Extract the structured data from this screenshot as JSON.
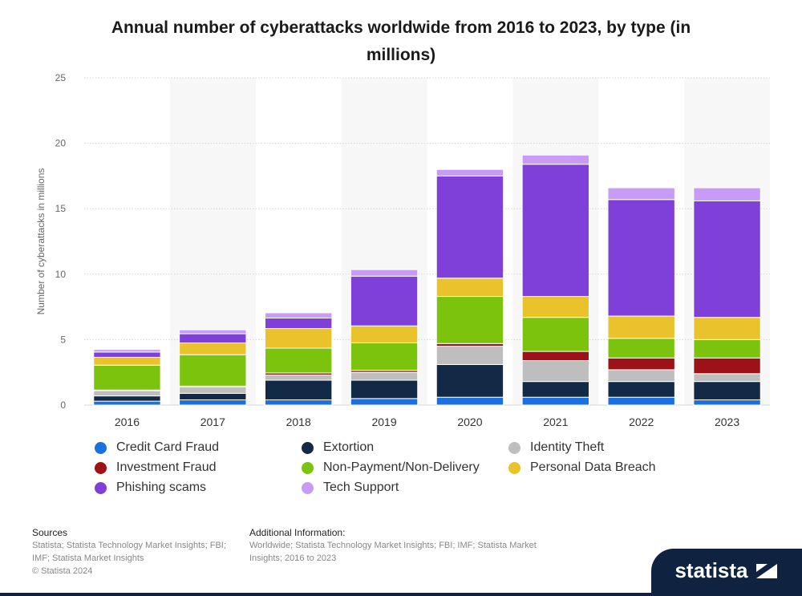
{
  "chart_data": {
    "type": "bar",
    "stacked": true,
    "title": "Annual number of cyberattacks worldwide from 2016 to 2023, by type (in millions)",
    "ylabel": "Number of cyberattacks in millions",
    "xlabel": "",
    "ylim": [
      0,
      25
    ],
    "yticks": [
      0,
      5,
      10,
      15,
      20,
      25
    ],
    "grid": true,
    "legend_position": "bottom",
    "categories": [
      "2016",
      "2017",
      "2018",
      "2019",
      "2020",
      "2021",
      "2022",
      "2023"
    ],
    "series": [
      {
        "name": "Credit Card Fraud",
        "color": "#1b6fde",
        "values": [
          0.3,
          0.4,
          0.4,
          0.5,
          0.6,
          0.6,
          0.6,
          0.4
        ]
      },
      {
        "name": "Extortion",
        "color": "#132a47",
        "values": [
          0.4,
          0.5,
          1.5,
          1.4,
          2.5,
          1.2,
          1.2,
          1.4
        ]
      },
      {
        "name": "Identity Theft",
        "color": "#bebebe",
        "values": [
          0.4,
          0.5,
          0.4,
          0.6,
          1.4,
          1.6,
          0.9,
          0.6
        ]
      },
      {
        "name": "Investment Fraud",
        "color": "#9c1216",
        "values": [
          0.05,
          0.05,
          0.15,
          0.15,
          0.2,
          0.7,
          0.9,
          1.2
        ]
      },
      {
        "name": "Non-Payment/Non-Delivery",
        "color": "#7cc30d",
        "values": [
          1.9,
          2.4,
          1.9,
          2.1,
          3.6,
          2.6,
          1.5,
          1.4
        ]
      },
      {
        "name": "Personal Data Breach",
        "color": "#eac22b",
        "values": [
          0.6,
          0.9,
          1.5,
          1.3,
          1.4,
          1.6,
          1.7,
          1.7
        ]
      },
      {
        "name": "Phishing scams",
        "color": "#7f3fd9",
        "values": [
          0.4,
          0.7,
          0.8,
          3.8,
          7.8,
          10.1,
          8.9,
          8.9
        ]
      },
      {
        "name": "Tech Support",
        "color": "#c79bf7",
        "values": [
          0.2,
          0.3,
          0.4,
          0.5,
          0.5,
          0.7,
          0.9,
          1.0
        ]
      }
    ]
  },
  "footer": {
    "sources_heading": "Sources",
    "sources_lines": [
      "Statista; Statista Technology Market Insights; FBI;",
      "IMF; Statista Market Insights",
      "© Statista 2024"
    ],
    "additional_heading": "Additional Information:",
    "additional_lines": [
      "Worldwide; Statista Technology Market Insights; FBI; IMF; Statista Market",
      "Insights; 2016 to 2023"
    ],
    "brand": "statista"
  }
}
